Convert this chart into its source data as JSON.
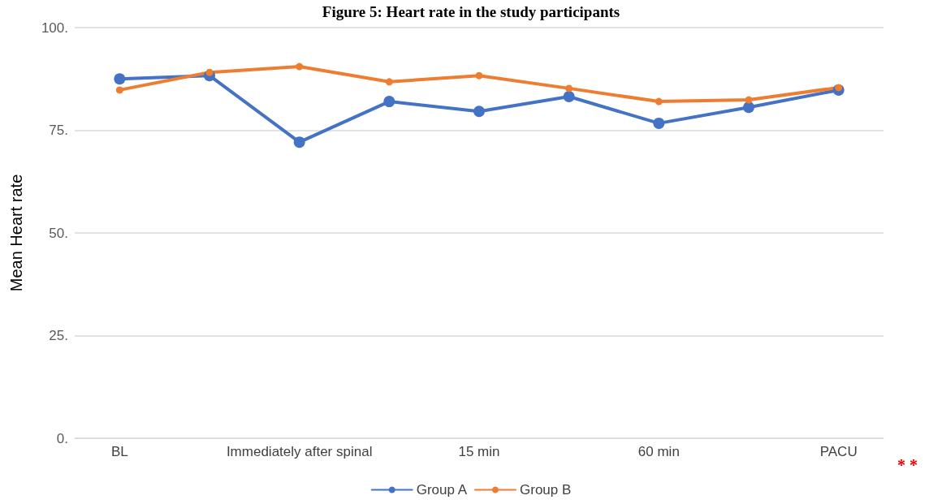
{
  "chart_data": {
    "type": "line",
    "title": "Figure 5: Heart rate in the study participants",
    "ylabel": "Mean Heart rate",
    "categories": [
      "BL",
      null,
      "Immediately after spinal",
      null,
      "15 min",
      null,
      "60 min",
      null,
      "PACU"
    ],
    "series": [
      {
        "name": "Group A",
        "color": "#4472c4",
        "values": [
          87.5,
          88.3,
          72.1,
          82.0,
          79.6,
          83.2,
          76.7,
          80.6,
          84.8
        ]
      },
      {
        "name": "Group B",
        "color": "#ed7d31",
        "values": [
          84.8,
          89.1,
          90.5,
          86.8,
          88.3,
          85.2,
          82.0,
          82.4,
          85.4
        ]
      }
    ],
    "ylim": [
      0,
      100
    ],
    "yticks": [
      {
        "value": 0,
        "label": "0."
      },
      {
        "value": 25,
        "label": "25."
      },
      {
        "value": 50,
        "label": "50."
      },
      {
        "value": 75,
        "label": "75."
      },
      {
        "value": 100,
        "label": "100."
      }
    ],
    "grid": "y",
    "legend": "bottom",
    "marker": "circle",
    "line_style": "solid",
    "annotations": [
      "* *"
    ]
  }
}
